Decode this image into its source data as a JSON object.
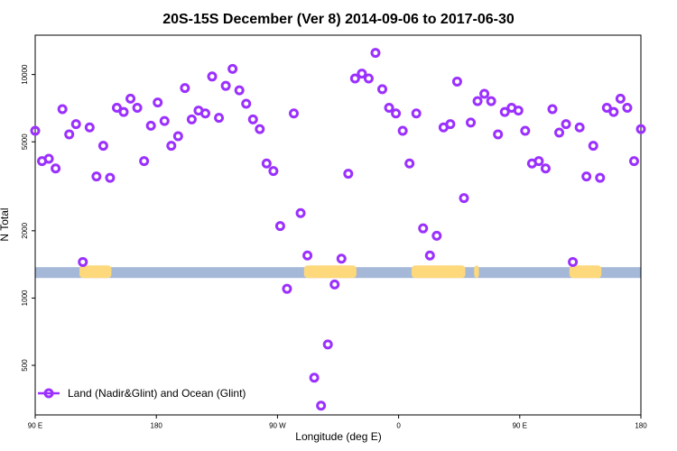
{
  "chart_data": {
    "type": "scatter",
    "title": "20S-15S December (Ver 8)   2014-09-06 to 2017-06-30",
    "xlabel": "Longitude (deg E)",
    "ylabel": "N Total",
    "y_scale": "log",
    "ylim": [
      300,
      15000
    ],
    "x_ticks": [
      "90 E",
      "180",
      "90 W",
      "0",
      "90 E",
      "180"
    ],
    "y_ticks": [
      {
        "value": 500,
        "label": "500"
      },
      {
        "value": 1000,
        "label": "1000"
      },
      {
        "value": 2000,
        "label": "2000"
      },
      {
        "value": 5000,
        "label": "5000"
      },
      {
        "value": 10000,
        "label": "10000"
      }
    ],
    "legend": {
      "label": "Land (Nadir&Glint) and Ocean (Glint)",
      "position": "bottom-left"
    },
    "colors": {
      "marker": "#9b30ff",
      "ocean": "#a5b8d8",
      "land": "#fdd97c"
    },
    "surface_band": {
      "level": 1300,
      "ocean_color": "#a5b8d8",
      "land_color": "#fdd97c",
      "land_segments_index": [
        [
          6.5,
          11.2
        ],
        [
          39.5,
          47.2
        ],
        [
          55.3,
          63.2
        ],
        [
          64.5,
          65.2
        ],
        [
          78.5,
          83.2
        ]
      ]
    },
    "series": [
      {
        "name": "Land (Nadir&Glint) and Ocean (Glint)",
        "values": [
          5600,
          4100,
          4200,
          3800,
          7000,
          5400,
          6000,
          1450,
          5800,
          3500,
          4800,
          3450,
          7100,
          6800,
          7800,
          7100,
          4100,
          5900,
          7500,
          6200,
          4800,
          5300,
          8700,
          6300,
          6900,
          6700,
          9800,
          6400,
          8900,
          10600,
          8500,
          7400,
          6300,
          5700,
          4000,
          3700,
          2100,
          1100,
          6700,
          2400,
          1550,
          440,
          330,
          620,
          1150,
          1500,
          3600,
          9600,
          10100,
          9600,
          12500,
          8600,
          7100,
          6700,
          5600,
          4000,
          6700,
          2050,
          1550,
          1900,
          5800,
          6000,
          9300,
          2800,
          6100,
          7600,
          8200,
          7600,
          5400,
          6800,
          7100,
          6900,
          5600,
          4000,
          4100,
          3800,
          7000,
          5500,
          6000,
          1450,
          5800,
          3500,
          4800,
          3450,
          7100,
          6800,
          7800,
          7100,
          4100,
          5700
        ]
      }
    ]
  }
}
